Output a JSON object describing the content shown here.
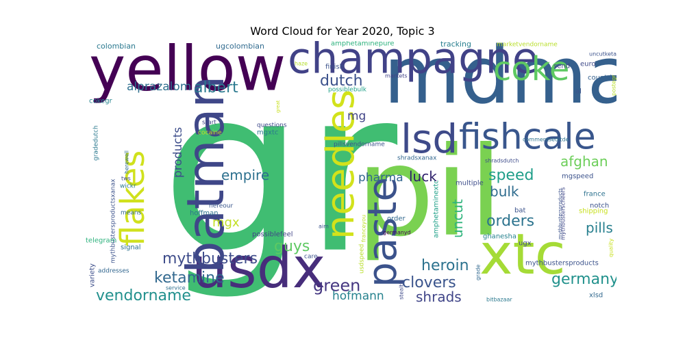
{
  "chart_data": {
    "type": "wordcloud",
    "title": "Word Cloud for Year 2020, Topic 3",
    "colormap": "viridis",
    "background": "#ffffff",
    "words": [
      {
        "text": "gr",
        "weight": 1.0,
        "color": "#40bd72",
        "orient": "h"
      },
      {
        "text": "pil",
        "weight": 0.86,
        "color": "#7ad151",
        "orient": "h"
      },
      {
        "text": "mdma",
        "weight": 0.74,
        "color": "#35608d",
        "orient": "h"
      },
      {
        "text": "yellow",
        "weight": 0.56,
        "color": "#440154",
        "orient": "h"
      },
      {
        "text": "usdx",
        "weight": 0.52,
        "color": "#472d7b",
        "orient": "h"
      },
      {
        "text": "xtc",
        "weight": 0.52,
        "color": "#a5db36",
        "orient": "h"
      },
      {
        "text": "batman",
        "weight": 0.46,
        "color": "#3f4788",
        "orient": "v"
      },
      {
        "text": "champagne",
        "weight": 0.4,
        "color": "#414287",
        "orient": "h"
      },
      {
        "text": "paste",
        "weight": 0.38,
        "color": "#3b528b",
        "orient": "v"
      },
      {
        "text": "needles",
        "weight": 0.36,
        "color": "#d2e21b",
        "orient": "v"
      },
      {
        "text": "lsd",
        "weight": 0.36,
        "color": "#3e4a89",
        "orient": "h"
      },
      {
        "text": "fishcale",
        "weight": 0.32,
        "color": "#39568c",
        "orient": "h"
      },
      {
        "text": "flakes",
        "weight": 0.3,
        "color": "#d0e11c",
        "orient": "v"
      },
      {
        "text": "coke",
        "weight": 0.3,
        "color": "#5ec962",
        "orient": "h"
      },
      {
        "text": "mythbusters",
        "weight": 0.14,
        "color": "#3e4c8a",
        "orient": "h"
      },
      {
        "text": "ketamine",
        "weight": 0.14,
        "color": "#31688e",
        "orient": "h"
      },
      {
        "text": "vendorname",
        "weight": 0.14,
        "color": "#21908d",
        "orient": "h"
      },
      {
        "text": "heroin",
        "weight": 0.14,
        "color": "#2c728e",
        "orient": "h"
      },
      {
        "text": "clovers",
        "weight": 0.14,
        "color": "#3a548c",
        "orient": "h"
      },
      {
        "text": "green",
        "weight": 0.15,
        "color": "#453781",
        "orient": "h"
      },
      {
        "text": "germany",
        "weight": 0.13,
        "color": "#21918c",
        "orient": "h"
      },
      {
        "text": "orders",
        "weight": 0.13,
        "color": "#2c738e",
        "orient": "h"
      },
      {
        "text": "speed",
        "weight": 0.13,
        "color": "#1f9e89",
        "orient": "h"
      },
      {
        "text": "dutch",
        "weight": 0.13,
        "color": "#3b518b",
        "orient": "h"
      },
      {
        "text": "albert",
        "weight": 0.13,
        "color": "#2a788e",
        "orient": "h"
      },
      {
        "text": "empire",
        "weight": 0.12,
        "color": "#2d708e",
        "orient": "h"
      },
      {
        "text": "guys",
        "weight": 0.13,
        "color": "#5ec962",
        "orient": "h"
      },
      {
        "text": "luck",
        "weight": 0.12,
        "color": "#2d1e6a",
        "orient": "h"
      },
      {
        "text": "afghan",
        "weight": 0.12,
        "color": "#6cce59",
        "orient": "h"
      },
      {
        "text": "pills",
        "weight": 0.12,
        "color": "#277f8e",
        "orient": "h"
      },
      {
        "text": "shrads",
        "weight": 0.12,
        "color": "#404588",
        "orient": "h"
      },
      {
        "text": "bulk",
        "weight": 0.12,
        "color": "#2f6c8e",
        "orient": "h"
      },
      {
        "text": "uncut",
        "weight": 0.12,
        "color": "#2fb47c",
        "orient": "v"
      },
      {
        "text": "mgx",
        "weight": 0.11,
        "color": "#c2df23",
        "orient": "h"
      },
      {
        "text": "pharma",
        "weight": 0.1,
        "color": "#31668e",
        "orient": "h"
      },
      {
        "text": "hofmann",
        "weight": 0.1,
        "color": "#26828e",
        "orient": "h"
      },
      {
        "text": "alprazalom",
        "weight": 0.1,
        "color": "#2e6f8e",
        "orient": "h"
      },
      {
        "text": "products",
        "weight": 0.1,
        "color": "#3d4d8a",
        "orient": "v"
      },
      {
        "text": "mg",
        "weight": 0.1,
        "color": "#414487",
        "orient": "h"
      },
      {
        "text": "colombian",
        "weight": 0.06,
        "color": "#2a788e",
        "orient": "h"
      },
      {
        "text": "ugcolombian",
        "weight": 0.06,
        "color": "#306a8e",
        "orient": "h"
      },
      {
        "text": "amphetaminepure",
        "weight": 0.05,
        "color": "#2db27d",
        "orient": "h"
      },
      {
        "text": "tracking",
        "weight": 0.06,
        "color": "#277e8e",
        "orient": "h"
      },
      {
        "text": "marketvendorname",
        "weight": 0.05,
        "color": "#b8de29",
        "orient": "h"
      },
      {
        "text": "send",
        "weight": 0.05,
        "color": "#404387",
        "orient": "h"
      },
      {
        "text": "euro",
        "weight": 0.05,
        "color": "#3f4a89",
        "orient": "h"
      },
      {
        "text": "uncutketamine",
        "weight": 0.04,
        "color": "#3b528b",
        "orient": "h"
      },
      {
        "text": "countries",
        "weight": 0.05,
        "color": "#35608d",
        "orient": "h"
      },
      {
        "text": "haze",
        "weight": 0.04,
        "color": "#b5de2b",
        "orient": "h"
      },
      {
        "text": "markets",
        "weight": 0.04,
        "color": "#414287",
        "orient": "h"
      },
      {
        "text": "possiblebulk",
        "weight": 0.05,
        "color": "#1fa088",
        "orient": "h"
      },
      {
        "text": "cokegr",
        "weight": 0.05,
        "color": "#25848e",
        "orient": "h"
      },
      {
        "text": "mgxtc",
        "weight": 0.05,
        "color": "#2a788e",
        "orient": "h"
      },
      {
        "text": "start",
        "weight": 0.05,
        "color": "#414487",
        "orient": "h"
      },
      {
        "text": "questions",
        "weight": 0.05,
        "color": "#3e4989",
        "orient": "h"
      },
      {
        "text": "cocaine",
        "weight": 0.05,
        "color": "#c8e020",
        "orient": "h"
      },
      {
        "text": "pillsvendorname",
        "weight": 0.05,
        "color": "#3b528b",
        "orient": "h"
      },
      {
        "text": "gradedutch",
        "weight": 0.05,
        "color": "#2a788e",
        "orient": "v"
      },
      {
        "text": "herewell",
        "weight": 0.04,
        "color": "#2e6d8e",
        "orient": "v"
      },
      {
        "text": "mythbustersproductsxanax",
        "weight": 0.05,
        "color": "#3b528b",
        "orient": "v"
      },
      {
        "text": "tws",
        "weight": 0.04,
        "color": "#3f4788",
        "orient": "h"
      },
      {
        "text": "wickr",
        "weight": 0.05,
        "color": "#2a788e",
        "orient": "h"
      },
      {
        "text": "hereour",
        "weight": 0.05,
        "color": "#39568c",
        "orient": "h"
      },
      {
        "text": "hoffman",
        "weight": 0.05,
        "color": "#2c718e",
        "orient": "h"
      },
      {
        "text": "means",
        "weight": 0.05,
        "color": "#31688e",
        "orient": "h"
      },
      {
        "text": "signal",
        "weight": 0.06,
        "color": "#2c718e",
        "orient": "h"
      },
      {
        "text": "telegram",
        "weight": 0.05,
        "color": "#2db27d",
        "orient": "h"
      },
      {
        "text": "variety",
        "weight": 0.05,
        "color": "#3d4e8a",
        "orient": "v"
      },
      {
        "text": "addresses",
        "weight": 0.05,
        "color": "#31668e",
        "orient": "h"
      },
      {
        "text": "service",
        "weight": 0.04,
        "color": "#2e6f8e",
        "orient": "h"
      },
      {
        "text": "possiblefeel",
        "weight": 0.05,
        "color": "#414487",
        "orient": "h"
      },
      {
        "text": "care",
        "weight": 0.05,
        "color": "#3b528b",
        "orient": "h"
      },
      {
        "text": "franceyou",
        "weight": 0.04,
        "color": "#bddf26",
        "orient": "v"
      },
      {
        "text": "aim",
        "weight": 0.04,
        "color": "#3b528b",
        "orient": "h"
      },
      {
        "text": "germanyd",
        "weight": 0.04,
        "color": "#440154",
        "orient": "h"
      },
      {
        "text": "usdspeed",
        "weight": 0.05,
        "color": "#b8de29",
        "orient": "v"
      },
      {
        "text": "stealth",
        "weight": 0.04,
        "color": "#3e4989",
        "orient": "v"
      },
      {
        "text": "shradsxanax",
        "weight": 0.05,
        "color": "#31668e",
        "orient": "h"
      },
      {
        "text": "amphetaminextc",
        "weight": 0.05,
        "color": "#1fa088",
        "orient": "v"
      },
      {
        "text": "order",
        "weight": 0.05,
        "color": "#31688e",
        "orient": "h"
      },
      {
        "text": "multiple",
        "weight": 0.05,
        "color": "#3d4d8a",
        "orient": "h"
      },
      {
        "text": "shradsdutch",
        "weight": 0.04,
        "color": "#3e4c8a",
        "orient": "h"
      },
      {
        "text": "commentseditde",
        "weight": 0.04,
        "color": "#2c718e",
        "orient": "h"
      },
      {
        "text": "mgspeed",
        "weight": 0.05,
        "color": "#3b528b",
        "orient": "h"
      },
      {
        "text": "mythbusterscheers",
        "weight": 0.04,
        "color": "#3f4788",
        "orient": "v"
      },
      {
        "text": "france",
        "weight": 0.05,
        "color": "#2c718e",
        "orient": "h"
      },
      {
        "text": "notch",
        "weight": 0.05,
        "color": "#3b528b",
        "orient": "h"
      },
      {
        "text": "shipping",
        "weight": 0.05,
        "color": "#c8e020",
        "orient": "h"
      },
      {
        "text": "bat",
        "weight": 0.05,
        "color": "#3b528b",
        "orient": "h"
      },
      {
        "text": "ghanesha",
        "weight": 0.05,
        "color": "#26828e",
        "orient": "h"
      },
      {
        "text": "ugx",
        "weight": 0.05,
        "color": "#3e4989",
        "orient": "h"
      },
      {
        "text": "mythbustersproducts",
        "weight": 0.05,
        "color": "#3b528b",
        "orient": "h"
      },
      {
        "text": "grade",
        "weight": 0.04,
        "color": "#31688e",
        "orient": "v"
      },
      {
        "text": "bitbazaar",
        "weight": 0.04,
        "color": "#2a788e",
        "orient": "h"
      },
      {
        "text": "xlsd",
        "weight": 0.05,
        "color": "#31688e",
        "orient": "h"
      },
      {
        "text": "finish",
        "weight": 0.05,
        "color": "#3b528b",
        "orient": "h"
      },
      {
        "text": "al",
        "weight": 0.05,
        "color": "#3b528b",
        "orient": "h"
      },
      {
        "text": "postegr",
        "weight": 0.04,
        "color": "#b8de29",
        "orient": "v"
      },
      {
        "text": "quality",
        "weight": 0.04,
        "color": "#c8e020",
        "orient": "v"
      },
      {
        "text": "great",
        "weight": 0.04,
        "color": "#c8e020",
        "orient": "v"
      },
      {
        "text": "mythbustersproducts",
        "weight": 0.04,
        "color": "#3b528b",
        "orient": "v"
      }
    ]
  }
}
